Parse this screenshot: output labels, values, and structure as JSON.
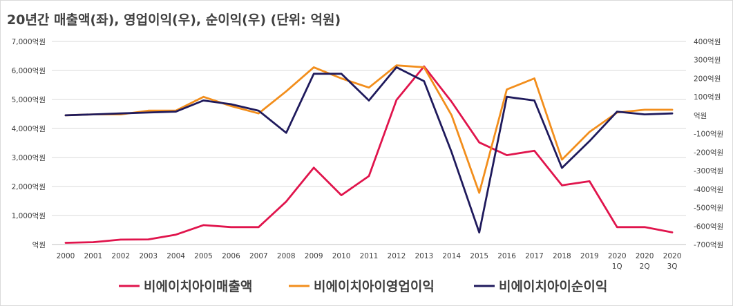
{
  "chart_data": {
    "type": "line",
    "title": "20년간 매출액(좌), 영업이익(우), 순이익(우) (단위: 억원)",
    "categories": [
      [
        "2000"
      ],
      [
        "2001"
      ],
      [
        "2002"
      ],
      [
        "2003"
      ],
      [
        "2004"
      ],
      [
        "2005"
      ],
      [
        "2006"
      ],
      [
        "2007"
      ],
      [
        "2008"
      ],
      [
        "2009"
      ],
      [
        "2010"
      ],
      [
        "2011"
      ],
      [
        "2012"
      ],
      [
        "2013"
      ],
      [
        "2014"
      ],
      [
        "2015"
      ],
      [
        "2016"
      ],
      [
        "2017"
      ],
      [
        "2018"
      ],
      [
        "2019"
      ],
      [
        "2020",
        "1Q"
      ],
      [
        "2020",
        "2Q"
      ],
      [
        "2020",
        "3Q"
      ]
    ],
    "left_axis": {
      "ylim": [
        0,
        7000
      ],
      "ticks": [
        {
          "v": 0,
          "label": "억원"
        },
        {
          "v": 1000,
          "label": "1,000억원"
        },
        {
          "v": 2000,
          "label": "2,000억원"
        },
        {
          "v": 3000,
          "label": "3,000억원"
        },
        {
          "v": 4000,
          "label": "4,000억원"
        },
        {
          "v": 5000,
          "label": "5,000억원"
        },
        {
          "v": 6000,
          "label": "6,000억원"
        },
        {
          "v": 7000,
          "label": "7,000억원"
        }
      ]
    },
    "right_axis": {
      "ylim": [
        -700,
        400
      ],
      "ticks": [
        {
          "v": 400,
          "label": "400억원"
        },
        {
          "v": 300,
          "label": "300억원"
        },
        {
          "v": 200,
          "label": "200억원"
        },
        {
          "v": 100,
          "label": "100억원"
        },
        {
          "v": 0,
          "label": "억원"
        },
        {
          "v": -100,
          "label": "-100억원"
        },
        {
          "v": -200,
          "label": "-200억원"
        },
        {
          "v": -300,
          "label": "-300억원"
        },
        {
          "v": -400,
          "label": "-400억원"
        },
        {
          "v": -500,
          "label": "-500억원"
        },
        {
          "v": -600,
          "label": "-600억원"
        },
        {
          "v": -700,
          "label": "-700억원"
        }
      ]
    },
    "grid": "horizontal",
    "legend_position": "bottom",
    "series": [
      {
        "name": "비에이치아이매출액",
        "axis": "left",
        "color": "#e0144c",
        "values": [
          60,
          80,
          170,
          175,
          340,
          670,
          600,
          600,
          1480,
          2650,
          1700,
          2360,
          4980,
          6140,
          4920,
          3520,
          3080,
          3230,
          2040,
          2180,
          600,
          600,
          420
        ]
      },
      {
        "name": "비에이치아이영업이익",
        "axis": "left-right",
        "color": "#f28e1c",
        "values": [
          0,
          5,
          5,
          25,
          25,
          100,
          50,
          10,
          130,
          260,
          200,
          150,
          270,
          260,
          0,
          -420,
          140,
          200,
          -240,
          -90,
          15,
          30,
          30
        ]
      },
      {
        "name": "비에이치아이순이익",
        "axis": "right",
        "color": "#1f1a5c",
        "values": [
          0,
          5,
          10,
          15,
          20,
          80,
          60,
          25,
          -95,
          225,
          225,
          80,
          260,
          185,
          -200,
          -635,
          100,
          80,
          -285,
          -140,
          20,
          5,
          10
        ]
      }
    ]
  }
}
